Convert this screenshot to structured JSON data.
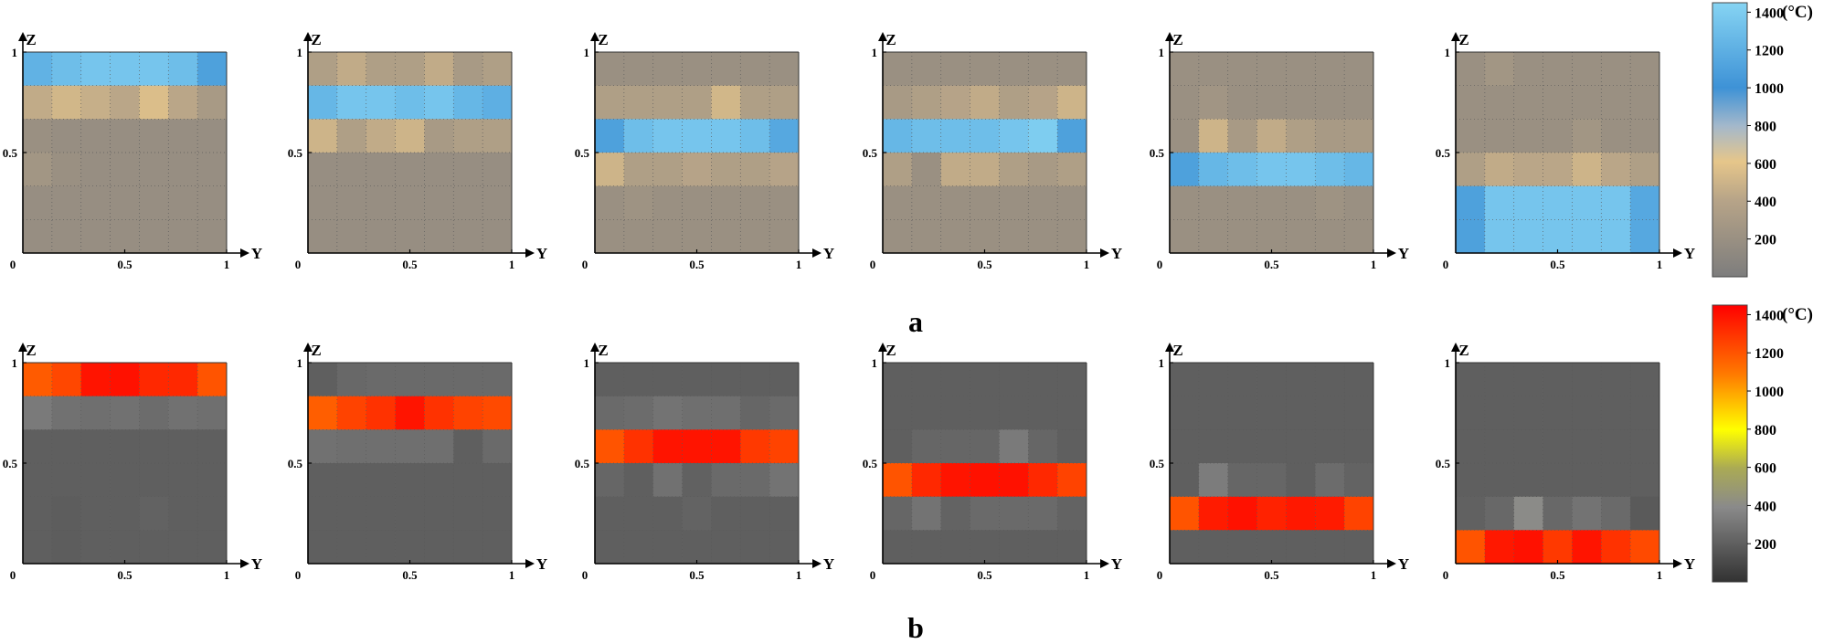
{
  "chart_data": {
    "type": "heatmap",
    "colorbar_unit": "(°C)",
    "colorbar_ticks": [
      "1400",
      "1200",
      "1000",
      "800",
      "600",
      "400",
      "200"
    ],
    "colorbar_range": [
      0,
      1450
    ],
    "axes": {
      "xlabel": "Y",
      "ylabel": "Z",
      "origin_label": "0",
      "xticks": [
        "0.5",
        "1"
      ],
      "yticks": [
        "1",
        "0.5"
      ],
      "xlim": [
        0,
        1
      ],
      "ylim": [
        0,
        1
      ]
    },
    "rows": [
      {
        "label": "a",
        "colormap": "gray-tan-blue",
        "panels": [
          {
            "grid": [
              [
                1220,
                1300,
                1350,
                1350,
                1350,
                1300,
                1100
              ],
              [
                450,
                520,
                470,
                420,
                560,
                420,
                300
              ],
              [
                200,
                180,
                180,
                180,
                180,
                180,
                180
              ],
              [
                260,
                200,
                180,
                180,
                180,
                180,
                180
              ],
              [
                180,
                180,
                180,
                180,
                180,
                180,
                180
              ],
              [
                180,
                180,
                180,
                180,
                180,
                180,
                180
              ]
            ]
          },
          {
            "grid": [
              [
                350,
                450,
                350,
                350,
                450,
                300,
                350
              ],
              [
                1250,
                1350,
                1350,
                1300,
                1350,
                1250,
                1200
              ],
              [
                500,
                350,
                450,
                500,
                300,
                350,
                350
              ],
              [
                180,
                180,
                180,
                180,
                180,
                180,
                180
              ],
              [
                180,
                180,
                180,
                180,
                180,
                180,
                180
              ],
              [
                180,
                180,
                180,
                180,
                180,
                180,
                180
              ]
            ]
          },
          {
            "grid": [
              [
                200,
                200,
                200,
                200,
                200,
                200,
                200
              ],
              [
                350,
                350,
                350,
                350,
                520,
                350,
                350
              ],
              [
                1100,
                1300,
                1350,
                1350,
                1350,
                1300,
                1150
              ],
              [
                500,
                350,
                350,
                400,
                350,
                350,
                400
              ],
              [
                200,
                230,
                200,
                200,
                200,
                200,
                200
              ],
              [
                200,
                200,
                200,
                200,
                200,
                200,
                200
              ]
            ]
          },
          {
            "grid": [
              [
                200,
                200,
                200,
                200,
                200,
                200,
                200
              ],
              [
                300,
                350,
                400,
                450,
                350,
                400,
                500
              ],
              [
                1250,
                1300,
                1300,
                1300,
                1350,
                1400,
                1100
              ],
              [
                350,
                200,
                450,
                450,
                350,
                300,
                350
              ],
              [
                200,
                200,
                200,
                200,
                200,
                200,
                200
              ],
              [
                200,
                200,
                200,
                200,
                200,
                200,
                200
              ]
            ]
          },
          {
            "grid": [
              [
                200,
                200,
                200,
                200,
                200,
                200,
                200
              ],
              [
                200,
                250,
                200,
                200,
                200,
                200,
                200
              ],
              [
                200,
                500,
                300,
                450,
                350,
                300,
                300
              ],
              [
                1100,
                1250,
                1300,
                1350,
                1350,
                1300,
                1250
              ],
              [
                200,
                200,
                200,
                200,
                200,
                230,
                200
              ],
              [
                200,
                200,
                200,
                200,
                200,
                200,
                200
              ]
            ]
          },
          {
            "grid": [
              [
                200,
                260,
                200,
                200,
                200,
                200,
                200
              ],
              [
                200,
                200,
                200,
                200,
                200,
                200,
                200
              ],
              [
                200,
                200,
                200,
                200,
                260,
                200,
                200
              ],
              [
                350,
                450,
                420,
                420,
                500,
                420,
                350
              ],
              [
                1100,
                1350,
                1350,
                1350,
                1350,
                1350,
                1150
              ],
              [
                1100,
                1350,
                1350,
                1350,
                1350,
                1350,
                1150
              ]
            ]
          }
        ]
      },
      {
        "label": "b",
        "colormap": "black-gray-yellow-red",
        "panels": [
          {
            "grid": [
              [
                1180,
                1240,
                1390,
                1400,
                1330,
                1330,
                1200
              ],
              [
                320,
                280,
                270,
                280,
                260,
                280,
                270
              ],
              [
                200,
                200,
                200,
                200,
                200,
                200,
                200
              ],
              [
                200,
                200,
                200,
                200,
                200,
                200,
                200
              ],
              [
                200,
                190,
                200,
                200,
                215,
                200,
                200
              ],
              [
                200,
                190,
                200,
                200,
                200,
                200,
                200
              ]
            ]
          },
          {
            "grid": [
              [
                200,
                240,
                250,
                250,
                250,
                250,
                250
              ],
              [
                1170,
                1250,
                1300,
                1390,
                1300,
                1250,
                1230
              ],
              [
                280,
                270,
                270,
                270,
                270,
                200,
                250
              ],
              [
                200,
                200,
                200,
                200,
                200,
                200,
                200
              ],
              [
                200,
                200,
                200,
                200,
                200,
                200,
                200
              ],
              [
                200,
                200,
                200,
                200,
                200,
                200,
                200
              ]
            ]
          },
          {
            "grid": [
              [
                200,
                200,
                200,
                200,
                200,
                200,
                200
              ],
              [
                250,
                260,
                290,
                270,
                270,
                230,
                250
              ],
              [
                1200,
                1300,
                1390,
                1390,
                1390,
                1280,
                1250
              ],
              [
                230,
                200,
                280,
                210,
                250,
                250,
                290
              ],
              [
                200,
                200,
                200,
                220,
                200,
                200,
                200
              ],
              [
                200,
                200,
                200,
                200,
                200,
                200,
                200
              ]
            ]
          },
          {
            "grid": [
              [
                200,
                200,
                200,
                200,
                200,
                200,
                200
              ],
              [
                200,
                200,
                200,
                200,
                200,
                200,
                200
              ],
              [
                200,
                230,
                230,
                230,
                320,
                230,
                200
              ],
              [
                1200,
                1330,
                1390,
                1400,
                1400,
                1330,
                1250
              ],
              [
                230,
                290,
                220,
                250,
                250,
                250,
                220
              ],
              [
                200,
                200,
                200,
                200,
                200,
                200,
                200
              ]
            ]
          },
          {
            "grid": [
              [
                200,
                200,
                200,
                200,
                200,
                200,
                200
              ],
              [
                200,
                200,
                200,
                200,
                200,
                200,
                200
              ],
              [
                200,
                200,
                200,
                200,
                200,
                200,
                200
              ],
              [
                200,
                330,
                230,
                230,
                200,
                260,
                220
              ],
              [
                1200,
                1370,
                1400,
                1350,
                1380,
                1370,
                1250
              ],
              [
                200,
                200,
                200,
                200,
                200,
                200,
                200
              ]
            ]
          },
          {
            "grid": [
              [
                200,
                200,
                200,
                200,
                200,
                200,
                200
              ],
              [
                200,
                200,
                200,
                200,
                200,
                200,
                200
              ],
              [
                200,
                200,
                200,
                200,
                200,
                200,
                200
              ],
              [
                200,
                200,
                200,
                200,
                200,
                200,
                200
              ],
              [
                210,
                240,
                400,
                240,
                290,
                250,
                180
              ],
              [
                1200,
                1380,
                1400,
                1280,
                1390,
                1300,
                1230
              ]
            ]
          }
        ]
      }
    ]
  }
}
